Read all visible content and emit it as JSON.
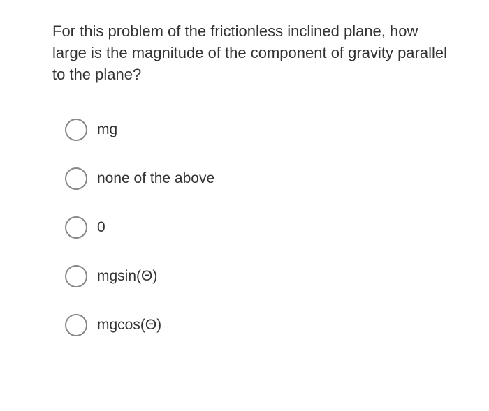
{
  "question": {
    "text": "For this problem of the frictionless inclined plane, how large is the magnitude of the component of gravity parallel to the plane?",
    "text_color": "#333333",
    "font_size": 22
  },
  "options": [
    {
      "label": "mg"
    },
    {
      "label": "none of the above"
    },
    {
      "label": "0"
    },
    {
      "label": "mgsin(Θ)"
    },
    {
      "label": "mgcos(Θ)"
    }
  ],
  "styling": {
    "background_color": "#ffffff",
    "radio_border_color": "#888888",
    "radio_size": 32,
    "option_font_size": 21,
    "option_gap": 38
  }
}
